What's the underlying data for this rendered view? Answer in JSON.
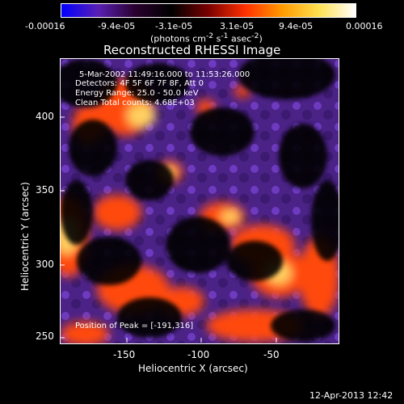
{
  "colorbar": {
    "tick_labels": [
      "-0.00016",
      "-9.4e-05",
      "-3.1e-05",
      "3.1e-05",
      "9.4e-05",
      "0.00016"
    ],
    "units_html": "(photons cm<sup>-2</sup> s<sup>-1</sup> asec<sup>-2</sup>)",
    "units_text": "(photons cm-2 s-1 asec-2)",
    "gradient": [
      "#0000ff",
      "#5a1fb3",
      "#2a0030",
      "#000000",
      "#7a0000",
      "#ff3000",
      "#ff9a00",
      "#ffe050",
      "#ffffff"
    ]
  },
  "title": "Reconstructed RHESSI Image",
  "annotations": {
    "time_range": "5-Mar-2002 11:49:16.000 to 11:53:26.000",
    "detectors": "Detectors: 4F 5F 6F 7F 8F, Att 0",
    "energy": "Energy Range: 25.0 - 50.0 keV",
    "clean": "Clean     Total counts: 4.68E+03",
    "peak": "Position of Peak = [-191,316]"
  },
  "axes": {
    "xlabel": "Heliocentric X (arcsec)",
    "ylabel": "Heliocentric Y (arcsec)",
    "x_ticks": [
      "-150",
      "-100",
      "-50"
    ],
    "y_ticks": [
      "400",
      "350",
      "300",
      "250"
    ]
  },
  "footer": {
    "date": "12-Apr-2013 12:42"
  },
  "colors": {
    "background": "#000000",
    "frame": "#ffffff",
    "image_purple": "#5a2aa0",
    "image_orange": "#ff4a10",
    "image_yellow": "#ffd060"
  }
}
